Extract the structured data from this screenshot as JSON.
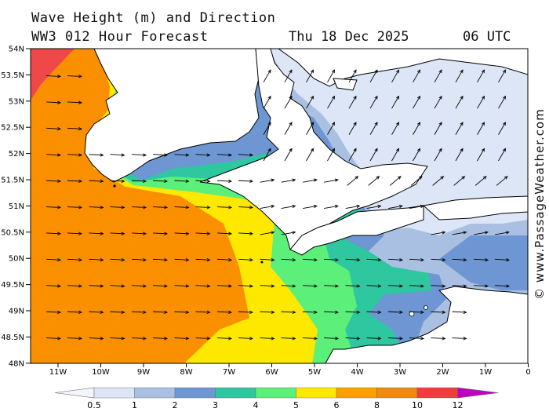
{
  "header": {
    "title_line1": "Wave Height (m) and Direction",
    "title_line2": "WW3 012 Hour Forecast",
    "date": "Thu 18 Dec 2025",
    "time": "06 UTC"
  },
  "credit": "© www.PassageWeather.com",
  "axes": {
    "lat_labels": [
      "54N",
      "53.5N",
      "53N",
      "52.5N",
      "52N",
      "51.5N",
      "51N",
      "50.5N",
      "50N",
      "49.5N",
      "49N",
      "48.5N",
      "48N"
    ],
    "lon_labels": [
      "11W",
      "10W",
      "9W",
      "8W",
      "7W",
      "6W",
      "5W",
      "4W",
      "3W",
      "2W",
      "1W",
      "0"
    ]
  },
  "legend": {
    "tick_labels": [
      "0.5",
      "1",
      "2",
      "3",
      "4",
      "5",
      "6",
      "8",
      "10",
      "12"
    ],
    "colors": [
      "#f4f4fb",
      "#dde6f6",
      "#a9c0e3",
      "#6d96d3",
      "#2ec7a0",
      "#5cf07a",
      "#ffe800",
      "#fca000",
      "#ef8a10",
      "#f03c3c",
      "#b80000",
      "#c000c0"
    ]
  },
  "colors": {
    "land": "#ffffff",
    "coast": "#000000",
    "very_low": "#dde6f6",
    "low": "#a9c0e3",
    "mid_low": "#6d96d3",
    "teal": "#2ec7a0",
    "green": "#5cf07a",
    "yellow": "#ffe800",
    "orange": "#fa9000",
    "red": "#f04848"
  }
}
